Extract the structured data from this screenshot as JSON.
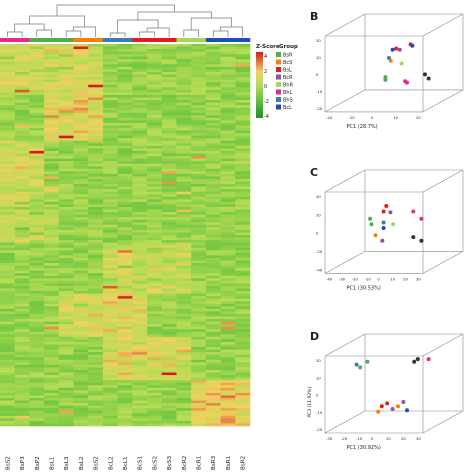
{
  "heatmap": {
    "legend_title": "Z-Score",
    "legend_group_title": "Group",
    "scale_ticks": [
      "4",
      "2",
      "0",
      "-2",
      "-4"
    ],
    "groups": [
      {
        "name": "BsR",
        "color": "#4daf4a"
      },
      {
        "name": "BcS",
        "color": "#ff7f00"
      },
      {
        "name": "BsL",
        "color": "#e41a1c"
      },
      {
        "name": "BcR",
        "color": "#984ea3"
      },
      {
        "name": "BhR",
        "color": "#a6d854"
      },
      {
        "name": "BhL",
        "color": "#e7298a"
      },
      {
        "name": "BhS",
        "color": "#377eb8"
      },
      {
        "name": "BcL",
        "color": "#1b4fbf"
      }
    ],
    "column_labels": [
      "BsS2",
      "BsP3",
      "BsP2",
      "BsL1",
      "BsL3",
      "BsL2",
      "BsS2",
      "BcL2",
      "BcL1",
      "BcS1",
      "BcS2",
      "BcS3",
      "BcR2",
      "BcR1",
      "BsR3",
      "BsR1",
      "BsR2"
    ]
  },
  "panels": [
    {
      "letter": "B",
      "xlabel": "PC1 (28.7%)",
      "ylabel": "",
      "zticks": [
        "20",
        "10",
        "0",
        "-10",
        "-20"
      ],
      "xticks": [
        "-20",
        "-10",
        "0",
        "10",
        "20"
      ]
    },
    {
      "letter": "C",
      "xlabel": "PC1 (30.53%)",
      "ylabel": "",
      "zticks": [
        "40",
        "20",
        "0",
        "-20",
        "-40"
      ],
      "xticks": [
        "-40",
        "-30",
        "-20",
        "-10",
        "0",
        "10",
        "20",
        "30"
      ]
    },
    {
      "letter": "D",
      "xlabel": "PC1 (30.92%)",
      "ylabel": "PC3 (11.92%)",
      "zticks": [
        "20",
        "10",
        "0",
        "-10",
        "-20"
      ],
      "xticks": [
        "-30",
        "-20",
        "-10",
        "0",
        "10",
        "20",
        "30"
      ]
    }
  ],
  "chart_data": [
    {
      "type": "heatmap",
      "title": "",
      "legend": "Z-Score",
      "range": [
        -4,
        4
      ],
      "columns": [
        "BsS2",
        "BsP3",
        "BsP2",
        "BsL1",
        "BsL3",
        "BsL2",
        "BsS2",
        "BcL2",
        "BcL1",
        "BcS1",
        "BcS2",
        "BcS3",
        "BcR2",
        "BcR1",
        "BsR3",
        "BsR1",
        "BsR2"
      ]
    },
    {
      "type": "scatter",
      "panel": "B",
      "xlabel": "PC1 (28.7%)",
      "points": [
        {
          "x": 2,
          "y": 14,
          "color": "#1b4fbf"
        },
        {
          "x": 4,
          "y": 15,
          "color": "#e41a1c"
        },
        {
          "x": 6,
          "y": 14,
          "color": "#984ea3"
        },
        {
          "x": 12,
          "y": 18,
          "color": "#e41a1c"
        },
        {
          "x": 13,
          "y": 17,
          "color": "#1b4fbf"
        },
        {
          "x": 0,
          "y": 8,
          "color": "#377eb8"
        },
        {
          "x": 1,
          "y": 6,
          "color": "#ff7f00"
        },
        {
          "x": 7,
          "y": 4,
          "color": "#a6d854"
        },
        {
          "x": -2,
          "y": -6,
          "color": "#4daf4a"
        },
        {
          "x": -2,
          "y": -8,
          "color": "#4daf4a"
        },
        {
          "x": 9,
          "y": -9,
          "color": "#e7298a"
        },
        {
          "x": 10,
          "y": -10,
          "color": "#e7298a"
        },
        {
          "x": 20,
          "y": -4,
          "color": "#333333"
        },
        {
          "x": 22,
          "y": -7,
          "color": "#333333"
        }
      ]
    },
    {
      "type": "scatter",
      "panel": "C",
      "xlabel": "PC1 (30.53%)",
      "points": [
        {
          "x": -2,
          "y": 24,
          "color": "#e41a1c"
        },
        {
          "x": -4,
          "y": 18,
          "color": "#e41a1c"
        },
        {
          "x": 1,
          "y": 17,
          "color": "#984ea3"
        },
        {
          "x": 18,
          "y": 18,
          "color": "#e7298a"
        },
        {
          "x": 24,
          "y": 10,
          "color": "#e7298a"
        },
        {
          "x": -14,
          "y": 10,
          "color": "#4daf4a"
        },
        {
          "x": -13,
          "y": 4,
          "color": "#4daf4a"
        },
        {
          "x": -4,
          "y": 6,
          "color": "#377eb8"
        },
        {
          "x": -4,
          "y": 0,
          "color": "#1b4fbf"
        },
        {
          "x": 3,
          "y": 4,
          "color": "#a6d854"
        },
        {
          "x": -10,
          "y": -8,
          "color": "#ff7f00"
        },
        {
          "x": -5,
          "y": -14,
          "color": "#984ea3"
        },
        {
          "x": 18,
          "y": -10,
          "color": "#333333"
        },
        {
          "x": 24,
          "y": -14,
          "color": "#333333"
        }
      ]
    },
    {
      "type": "scatter",
      "panel": "D",
      "xlabel": "PC1 (30.92%)",
      "ylabel": "PC3 (11.92%)",
      "points": [
        {
          "x": -18,
          "y": 18,
          "color": "#377eb8"
        },
        {
          "x": -16,
          "y": 16,
          "color": "#4daf4a"
        },
        {
          "x": -12,
          "y": 20,
          "color": "#4daf4a"
        },
        {
          "x": 14,
          "y": 20,
          "color": "#333333"
        },
        {
          "x": 16,
          "y": 22,
          "color": "#333333"
        },
        {
          "x": 22,
          "y": 22,
          "color": "#e7298a"
        },
        {
          "x": -4,
          "y": -12,
          "color": "#e41a1c"
        },
        {
          "x": -1,
          "y": -10,
          "color": "#e41a1c"
        },
        {
          "x": 2,
          "y": -14,
          "color": "#984ea3"
        },
        {
          "x": 5,
          "y": -12,
          "color": "#ff7f00"
        },
        {
          "x": 8,
          "y": -9,
          "color": "#984ea3"
        },
        {
          "x": 10,
          "y": -15,
          "color": "#1b4fbf"
        },
        {
          "x": -6,
          "y": -16,
          "color": "#ff7f00"
        }
      ]
    }
  ]
}
